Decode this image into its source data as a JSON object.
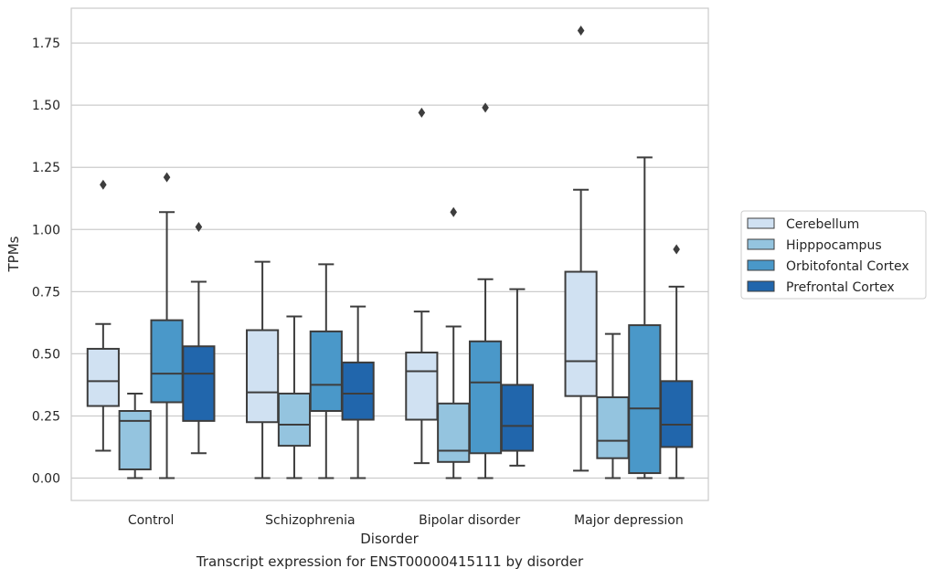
{
  "caption": "Transcript expression for ENST00000415111 by disorder",
  "chart_data": {
    "type": "box",
    "xlabel": "Disorder",
    "ylabel": "TPMs",
    "ylim": [
      -0.09,
      1.89
    ],
    "yticks": [
      0.0,
      0.25,
      0.5,
      0.75,
      1.0,
      1.25,
      1.5,
      1.75
    ],
    "ytick_labels": [
      "0.00",
      "0.25",
      "0.50",
      "0.75",
      "1.00",
      "1.25",
      "1.50",
      "1.75"
    ],
    "grid": "horizontal",
    "legend_position": "right",
    "categories": [
      "Control",
      "Schizophrenia",
      "Bipolar disorder",
      "Major depression"
    ],
    "series": [
      {
        "name": "Cerebellum",
        "color": "#d0e1f2",
        "boxes": [
          {
            "whisker_low": 0.11,
            "q1": 0.29,
            "median": 0.39,
            "q3": 0.52,
            "whisker_high": 0.62,
            "outliers": [
              1.18
            ]
          },
          {
            "whisker_low": 0.0,
            "q1": 0.225,
            "median": 0.345,
            "q3": 0.595,
            "whisker_high": 0.87,
            "outliers": []
          },
          {
            "whisker_low": 0.06,
            "q1": 0.235,
            "median": 0.43,
            "q3": 0.505,
            "whisker_high": 0.67,
            "outliers": [
              1.47
            ]
          },
          {
            "whisker_low": 0.03,
            "q1": 0.33,
            "median": 0.47,
            "q3": 0.83,
            "whisker_high": 1.16,
            "outliers": [
              1.8
            ]
          }
        ]
      },
      {
        "name": "Hipppocampus",
        "color": "#94c4df",
        "boxes": [
          {
            "whisker_low": 0.0,
            "q1": 0.035,
            "median": 0.23,
            "q3": 0.27,
            "whisker_high": 0.34,
            "outliers": []
          },
          {
            "whisker_low": 0.0,
            "q1": 0.13,
            "median": 0.215,
            "q3": 0.34,
            "whisker_high": 0.65,
            "outliers": []
          },
          {
            "whisker_low": 0.0,
            "q1": 0.065,
            "median": 0.11,
            "q3": 0.3,
            "whisker_high": 0.61,
            "outliers": [
              1.07
            ]
          },
          {
            "whisker_low": 0.0,
            "q1": 0.08,
            "median": 0.15,
            "q3": 0.325,
            "whisker_high": 0.58,
            "outliers": []
          }
        ]
      },
      {
        "name": "Orbitofontal Cortex",
        "color": "#4a98c9",
        "boxes": [
          {
            "whisker_low": 0.0,
            "q1": 0.305,
            "median": 0.42,
            "q3": 0.635,
            "whisker_high": 1.07,
            "outliers": [
              1.21
            ]
          },
          {
            "whisker_low": 0.0,
            "q1": 0.27,
            "median": 0.375,
            "q3": 0.59,
            "whisker_high": 0.86,
            "outliers": []
          },
          {
            "whisker_low": 0.0,
            "q1": 0.1,
            "median": 0.385,
            "q3": 0.55,
            "whisker_high": 0.8,
            "outliers": [
              1.49
            ]
          },
          {
            "whisker_low": 0.0,
            "q1": 0.02,
            "median": 0.28,
            "q3": 0.615,
            "whisker_high": 1.29,
            "outliers": []
          }
        ]
      },
      {
        "name": "Prefrontal Cortex",
        "color": "#2166ac",
        "boxes": [
          {
            "whisker_low": 0.1,
            "q1": 0.23,
            "median": 0.42,
            "q3": 0.53,
            "whisker_high": 0.79,
            "outliers": [
              1.01
            ]
          },
          {
            "whisker_low": 0.0,
            "q1": 0.235,
            "median": 0.34,
            "q3": 0.465,
            "whisker_high": 0.69,
            "outliers": []
          },
          {
            "whisker_low": 0.05,
            "q1": 0.11,
            "median": 0.21,
            "q3": 0.375,
            "whisker_high": 0.76,
            "outliers": []
          },
          {
            "whisker_low": 0.0,
            "q1": 0.125,
            "median": 0.215,
            "q3": 0.39,
            "whisker_high": 0.77,
            "outliers": [
              0.92
            ]
          }
        ]
      }
    ]
  }
}
